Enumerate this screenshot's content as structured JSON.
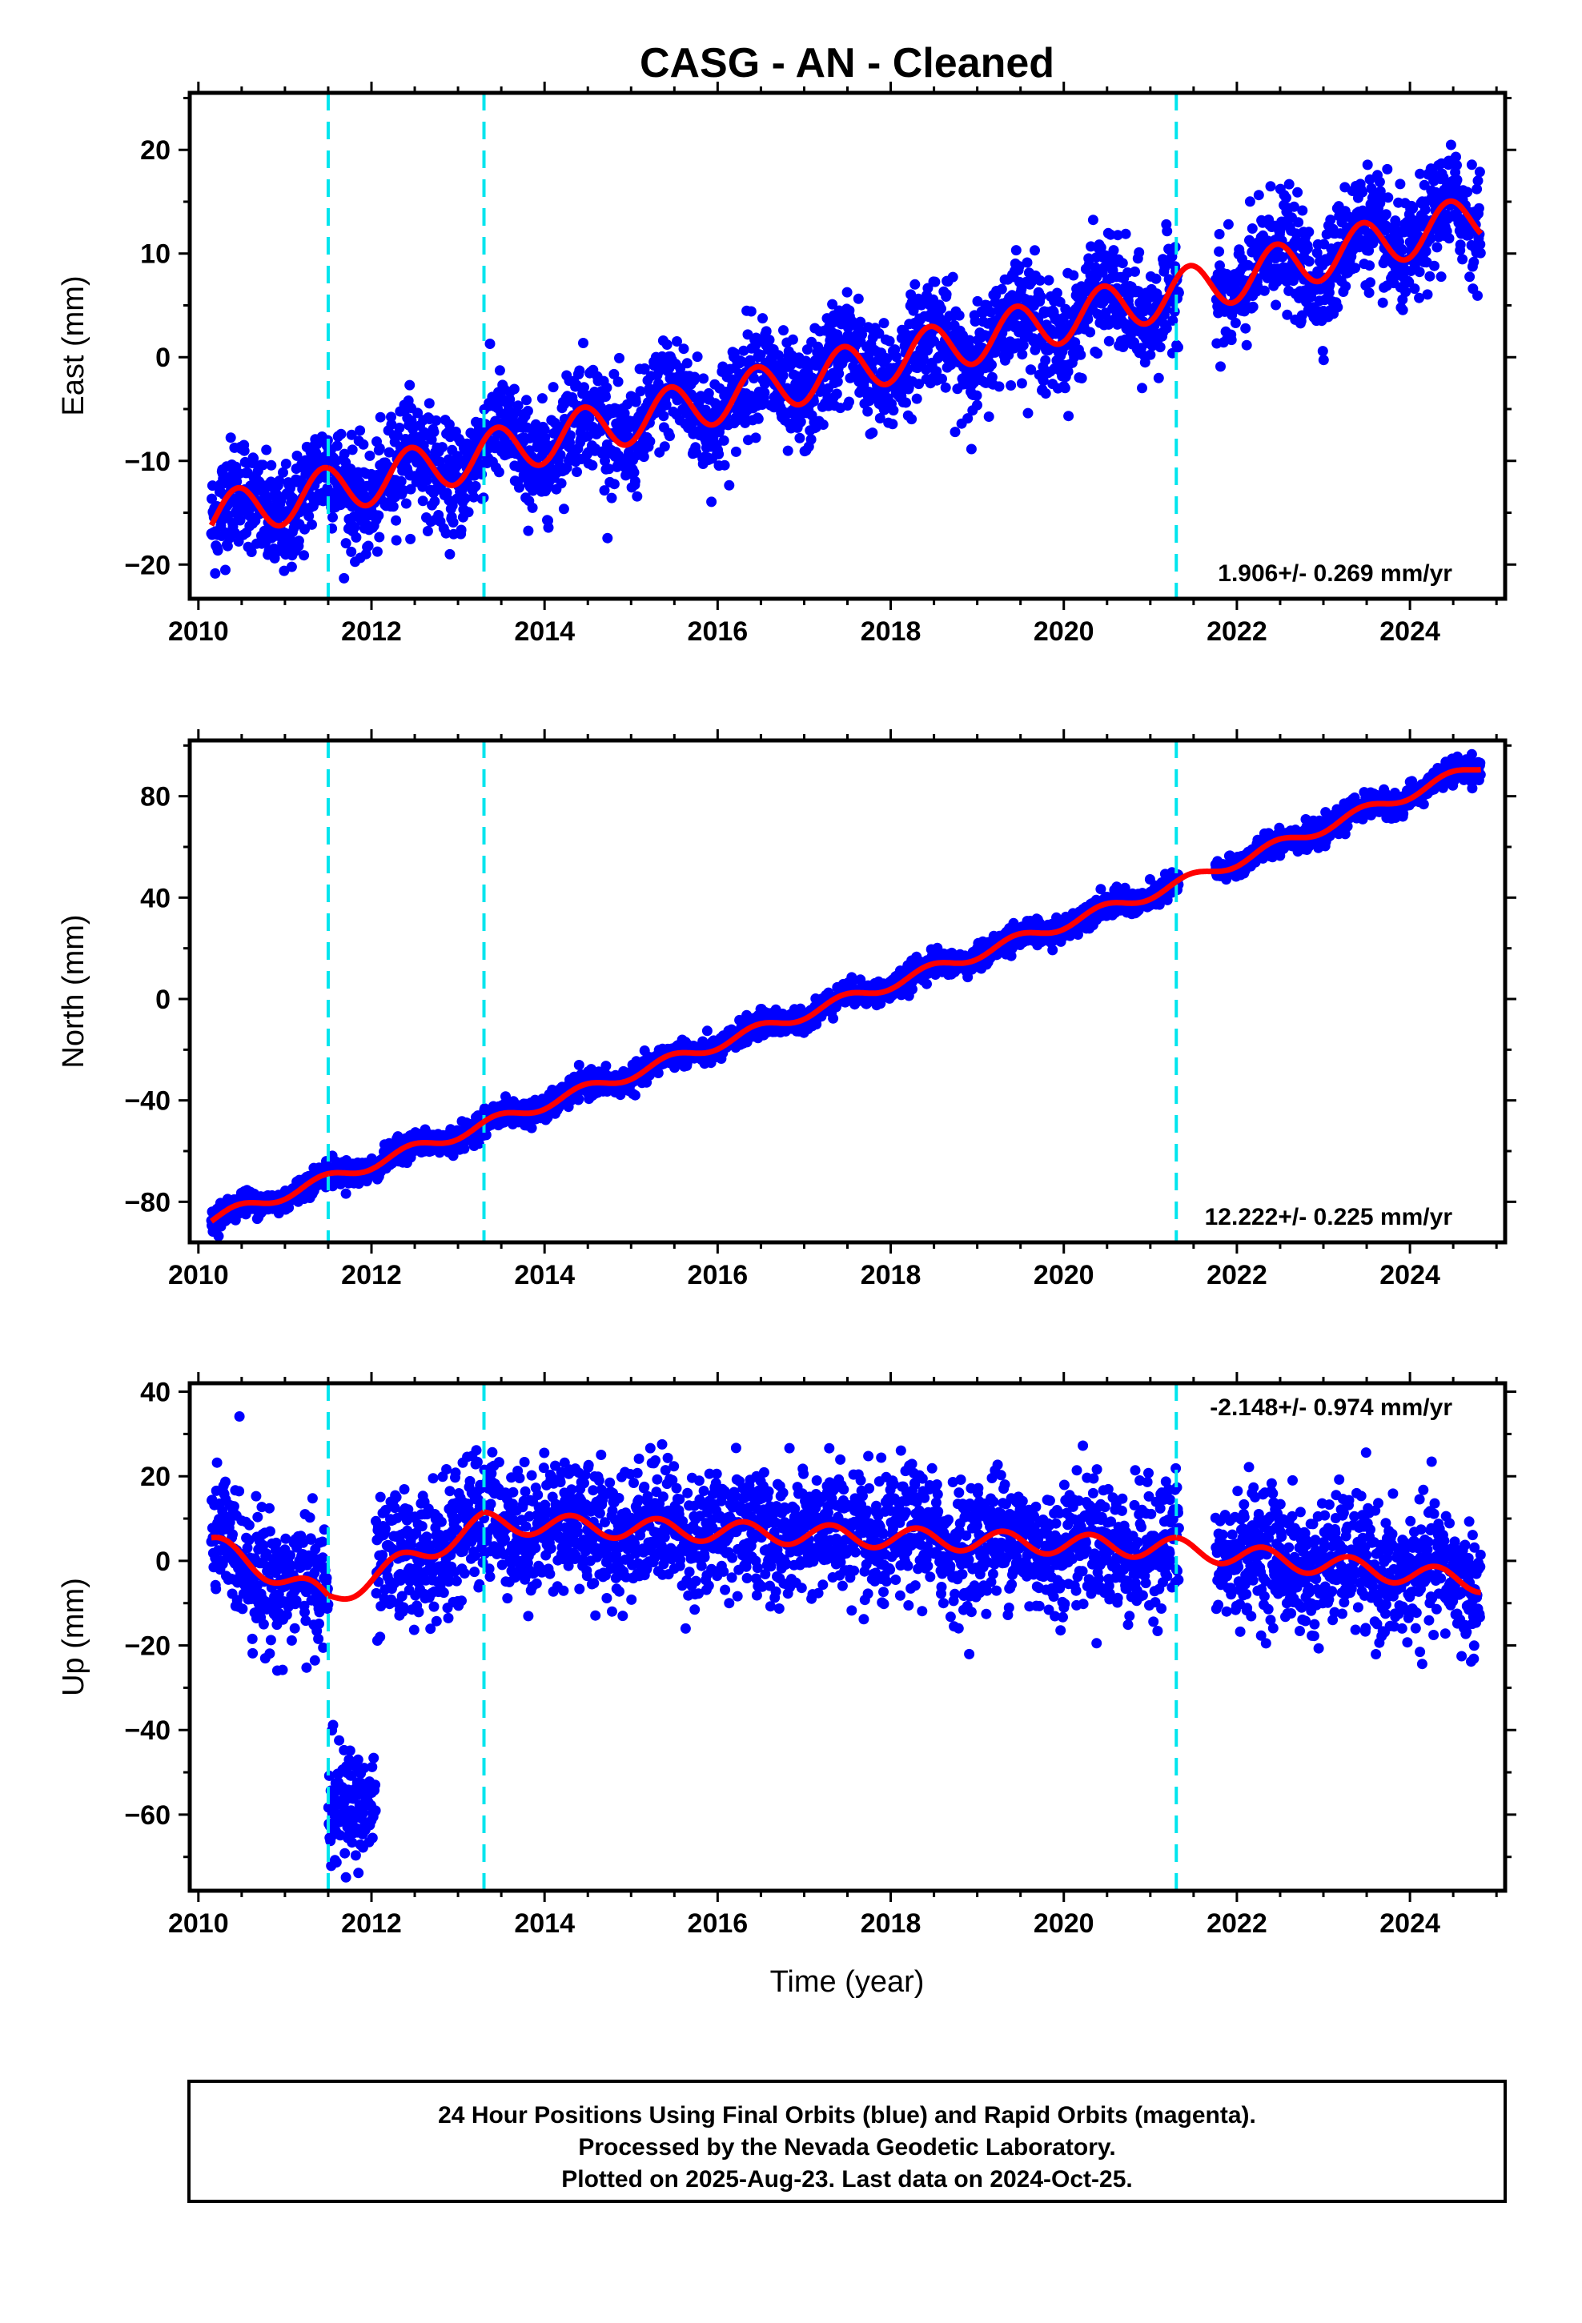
{
  "title": "CASG  - AN - Cleaned",
  "xlabel": "Time (year)",
  "footer": [
    "24 Hour Positions Using Final Orbits (blue) and Rapid Orbits (magenta).",
    "Processed by the Nevada Geodetic Laboratory.",
    "Plotted on 2025-Aug-23. Last data on 2024-Oct-25."
  ],
  "colors": {
    "points": "#0000ff",
    "model": "#ff0000",
    "events": "#00e5ee",
    "frame": "#000000"
  },
  "chart_data": [
    {
      "type": "scatter",
      "ylabel": "East (mm)",
      "rate_label": "1.906+/- 0.269 mm/yr",
      "xlim": [
        2009.9,
        2025.1
      ],
      "ylim": [
        -23.3,
        25.5
      ],
      "xticks": [
        2010,
        2012,
        2014,
        2016,
        2018,
        2020,
        2022,
        2024
      ],
      "yticks": [
        -20,
        -10,
        0,
        10,
        20
      ],
      "event_lines": [
        2011.5,
        2013.3,
        2021.3
      ],
      "data_start": 2010.15,
      "data_end": 2024.82,
      "gap": [
        2021.33,
        2021.75
      ],
      "model": {
        "anchors": [
          [
            2010.15,
            -15.5
          ],
          [
            2021.3,
            6.2
          ],
          [
            2024.82,
            13.5
          ]
        ],
        "seasonal_amp": 2.3,
        "seasonal_peak": 0.45
      },
      "scatter_sd": 2.6
    },
    {
      "type": "scatter",
      "ylabel": "North (mm)",
      "rate_label": "12.222+/- 0.225 mm/yr",
      "xlim": [
        2009.9,
        2025.1
      ],
      "ylim": [
        -96,
        102
      ],
      "xticks": [
        2010,
        2012,
        2014,
        2016,
        2018,
        2020,
        2022,
        2024
      ],
      "yticks": [
        -80,
        -40,
        0,
        40,
        80
      ],
      "event_lines": [
        2011.5,
        2013.3,
        2021.3
      ],
      "data_start": 2010.15,
      "data_end": 2024.82,
      "gap": [
        2021.33,
        2021.75
      ],
      "model": {
        "anchors": [
          [
            2010.15,
            -87
          ],
          [
            2021.3,
            45
          ],
          [
            2024.82,
            92
          ]
        ],
        "seasonal_amp": 2.2,
        "seasonal_peak": 0.45
      },
      "scatter_sd": 2.4
    },
    {
      "type": "scatter",
      "ylabel": "Up (mm)",
      "rate_label": "-2.148+/- 0.974 mm/yr",
      "xlim": [
        2009.9,
        2025.1
      ],
      "ylim": [
        -78,
        42
      ],
      "xticks": [
        2010,
        2012,
        2014,
        2016,
        2018,
        2020,
        2022,
        2024
      ],
      "yticks": [
        -60,
        -40,
        -20,
        0,
        20,
        40
      ],
      "event_lines": [
        2011.5,
        2013.3,
        2021.3
      ],
      "data_start": 2010.15,
      "data_end": 2024.82,
      "gap": [
        2021.33,
        2021.75
      ],
      "model": {
        "anchors": [
          [
            2010.15,
            4
          ],
          [
            2011.5,
            -9
          ],
          [
            2013.3,
            9
          ],
          [
            2021.3,
            3
          ],
          [
            2024.82,
            -5
          ]
        ],
        "seasonal_amp": 2.5,
        "seasonal_peak": 0.3
      },
      "scatter_sd": 7.5,
      "cluster": {
        "x": [
          2011.5,
          2012.05
        ],
        "y_center": -58,
        "sd": 7
      }
    }
  ]
}
